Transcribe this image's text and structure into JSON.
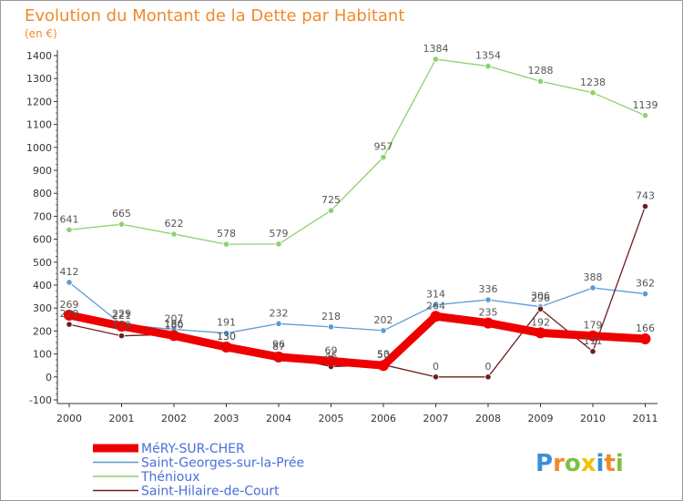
{
  "chart_data": {
    "type": "line",
    "title": "Evolution du Montant de la Dette par Habitant",
    "subtitle": "(en €)",
    "x": [
      "2000",
      "2001",
      "2002",
      "2003",
      "2004",
      "2005",
      "2006",
      "2007",
      "2008",
      "2009",
      "2010",
      "2011"
    ],
    "ylim": [
      -100,
      1400
    ],
    "yticks": [
      -100,
      0,
      100,
      200,
      300,
      400,
      500,
      600,
      700,
      800,
      900,
      1000,
      1100,
      1200,
      1300,
      1400
    ],
    "grid": false,
    "legend_position": "bottom-left",
    "series": [
      {
        "name": "MéRY-SUR-CHER",
        "color": "#ee0000",
        "values": [
          269,
          221,
          180,
          130,
          87,
          69,
          50,
          264,
          235,
          192,
          179,
          166
        ]
      },
      {
        "name": "Saint-Georges-sur-la-Prée",
        "color": "#5b9bd5",
        "values": [
          412,
          229,
          207,
          191,
          232,
          218,
          202,
          314,
          336,
          306,
          388,
          362
        ]
      },
      {
        "name": "Thénioux",
        "color": "#8ed16e",
        "values": [
          641,
          665,
          622,
          578,
          579,
          725,
          957,
          1384,
          1354,
          1288,
          1238,
          1139
        ]
      },
      {
        "name": "Saint-Hilaire-de-Court",
        "color": "#6b1f1f",
        "values": [
          229,
          179,
          186,
          130,
          96,
          45,
          53,
          0,
          0,
          296,
          111,
          743
        ]
      }
    ]
  },
  "brand": {
    "text": "Proxiti",
    "letters": [
      "P",
      "r",
      "o",
      "x",
      "i",
      "t",
      "i"
    ],
    "colors": [
      "#3a8fd6",
      "#f08a2a",
      "#7cc242",
      "#f2c200",
      "#3a8fd6",
      "#f08a2a",
      "#7cc242"
    ]
  }
}
